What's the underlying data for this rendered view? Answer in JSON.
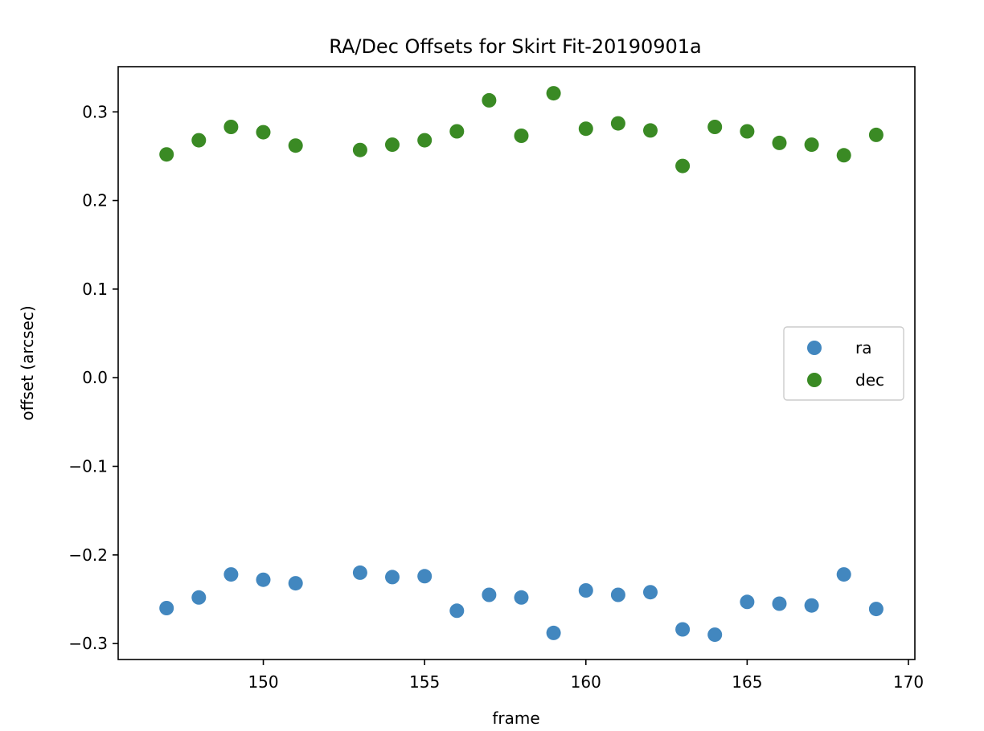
{
  "chart_data": {
    "type": "scatter",
    "title": "RA/Dec Offsets for Skirt Fit-20190901a",
    "xlabel": "frame",
    "ylabel": "offset (arcsec)",
    "xlim": [
      145.5,
      170.2
    ],
    "ylim": [
      -0.318,
      0.351
    ],
    "xticks": [
      150,
      155,
      160,
      165,
      170
    ],
    "xtick_labels": [
      "150",
      "155",
      "160",
      "165",
      "170"
    ],
    "yticks": [
      -0.3,
      -0.2,
      -0.1,
      0.0,
      0.1,
      0.2,
      0.3
    ],
    "ytick_labels": [
      "−0.3",
      "−0.2",
      "−0.1",
      "0.0",
      "0.1",
      "0.2",
      "0.3"
    ],
    "grid": false,
    "legend_position": "center-right",
    "x": [
      147,
      148,
      149,
      150,
      151,
      153,
      154,
      155,
      156,
      157,
      158,
      159,
      160,
      161,
      162,
      163,
      164,
      165,
      166,
      167,
      168,
      169
    ],
    "series": [
      {
        "name": "ra",
        "color": "#4287bf",
        "values": [
          -0.26,
          -0.248,
          -0.222,
          -0.228,
          -0.232,
          -0.22,
          -0.225,
          -0.224,
          -0.263,
          -0.245,
          -0.248,
          -0.288,
          -0.24,
          -0.245,
          -0.242,
          -0.284,
          -0.29,
          -0.253,
          -0.255,
          -0.257,
          -0.222,
          -0.261
        ]
      },
      {
        "name": "dec",
        "color": "#3a8a24",
        "values": [
          0.252,
          0.268,
          0.283,
          0.277,
          0.262,
          0.257,
          0.263,
          0.268,
          0.278,
          0.313,
          0.273,
          0.321,
          0.281,
          0.287,
          0.279,
          0.239,
          0.283,
          0.278,
          0.265,
          0.263,
          0.251,
          0.274
        ]
      }
    ]
  }
}
